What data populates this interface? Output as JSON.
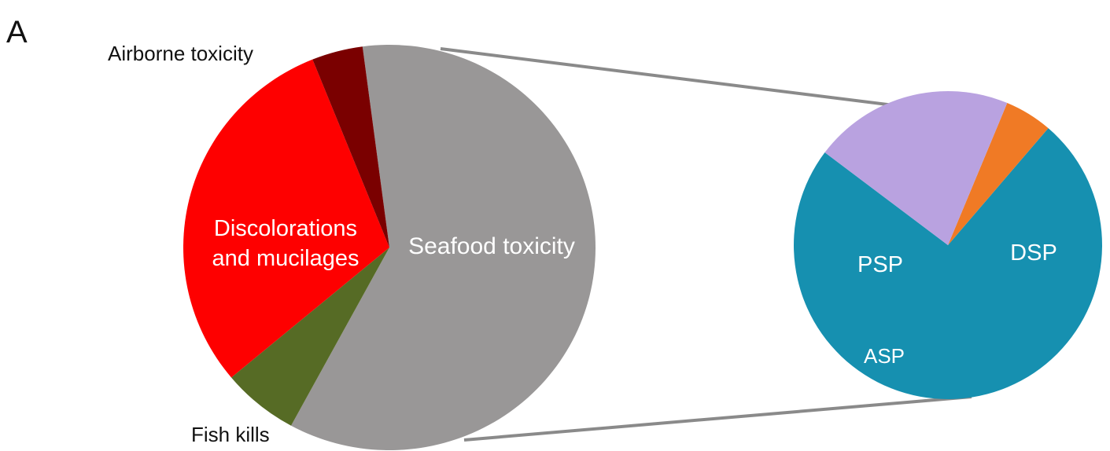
{
  "panel_label": "A",
  "chart_data": {
    "type": "pie",
    "subtype": "pie-of-pie",
    "main_pie": {
      "slices": [
        {
          "label": "Seafood toxicity",
          "value": 60,
          "color": "#999797",
          "label_color": "#ffffff"
        },
        {
          "label": "Fish kills",
          "value": 6,
          "color": "#566b25",
          "label_color": "#111111"
        },
        {
          "label": "Discolorations and mucilages",
          "value": 30,
          "color": "#fe0000",
          "label_color": "#ffffff"
        },
        {
          "label": "Airborne toxicity",
          "value": 4,
          "color": "#7a0000",
          "label_color": "#111111"
        }
      ]
    },
    "detail_pie": {
      "parent": "Seafood toxicity",
      "slices": [
        {
          "label": "DSP",
          "value": 74,
          "color": "#1690b0",
          "label_color": "#ffffff"
        },
        {
          "label": "ASP",
          "value": 5,
          "color": "#f07a25",
          "label_color": "#ffffff"
        },
        {
          "label": "PSP",
          "value": 21,
          "color": "#b9a2e0",
          "label_color": "#ffffff"
        }
      ]
    },
    "connector_color": "#8a8a8a"
  }
}
